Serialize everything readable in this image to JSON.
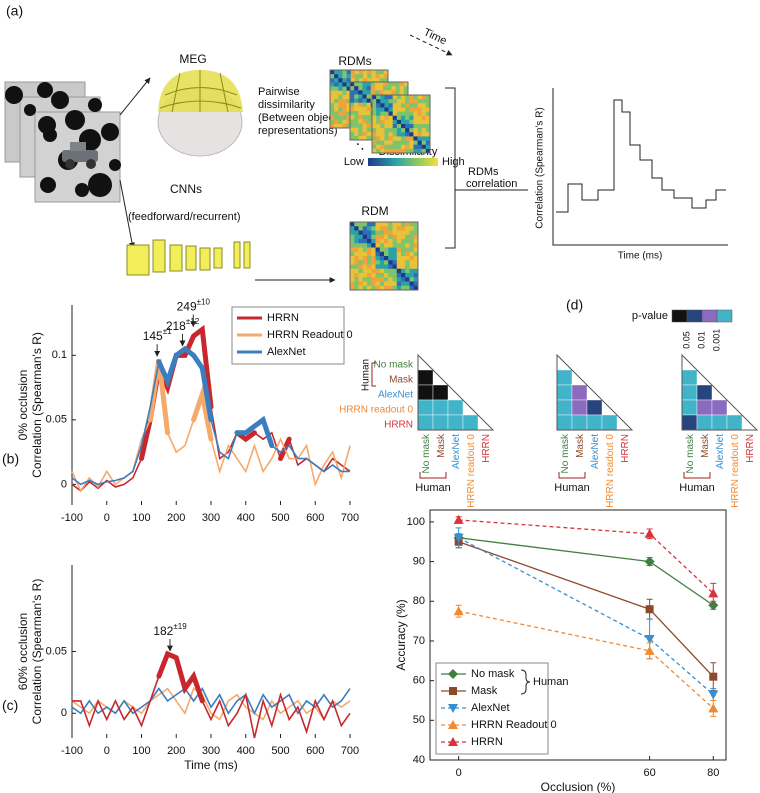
{
  "diagram": {
    "label": "(a)",
    "meg": "MEG",
    "rdms": "RDMs",
    "time": "Time",
    "pairwise": [
      "Pairwise",
      "dissimilarity",
      "(Between object",
      "representations)"
    ],
    "ellipsis": "⋱",
    "dissimilarity": "Dissimilarity",
    "low": "Low",
    "high": "High",
    "rdms_corr": [
      "RDMs",
      "correlation"
    ],
    "cnns": "CNNs",
    "cnn_type": "(feedforward/recurrent)",
    "rdm": "RDM",
    "inset_ylabel": "Correlation (Spearman's R)",
    "inset_xlabel": "Time (ms)"
  },
  "chart_data": [
    {
      "type": "line",
      "panel_label": "(b)",
      "ylabel": [
        "0% occlusion",
        "Correlation (Spearman's R)"
      ],
      "x": [
        -100,
        -75,
        -50,
        -25,
        0,
        25,
        50,
        75,
        100,
        125,
        150,
        175,
        200,
        225,
        250,
        275,
        300,
        325,
        350,
        375,
        400,
        425,
        450,
        475,
        500,
        525,
        550,
        575,
        600,
        625,
        650,
        675,
        700
      ],
      "xlim": [
        -100,
        700
      ],
      "xticks": [
        -100,
        0,
        100,
        200,
        300,
        400,
        500,
        600,
        700
      ],
      "ylim": [
        -0.016,
        0.139
      ],
      "yticks": [
        0,
        0.05,
        0.1
      ],
      "legend": "upper right",
      "series": [
        {
          "name": "HRRN",
          "color": "#c8282d",
          "values": [
            0,
            -0.005,
            0.002,
            -0.003,
            0.003,
            -0.002,
            0,
            0.005,
            0.02,
            0.05,
            0.09,
            0.075,
            0.1,
            0.1,
            0.115,
            0.12,
            0.06,
            0.02,
            0.025,
            0.04,
            0.035,
            0.04,
            0.035,
            0.04,
            0.02,
            0.035,
            0.015,
            0.02,
            0.015,
            0.01,
            0.02,
            0.015,
            0.01
          ],
          "significant": [
            [
              100,
              300
            ],
            [
              375,
              425
            ],
            [
              500,
              525
            ]
          ]
        },
        {
          "name": "HRRN Readout 0",
          "color": "#f5a96b",
          "values": [
            0.01,
            -0.005,
            0.005,
            -0.002,
            0.01,
            0,
            0.005,
            0.01,
            0.035,
            0.05,
            0.097,
            0.04,
            0.025,
            0.03,
            0.05,
            0.07,
            0.035,
            0.01,
            0.03,
            0.02,
            0.01,
            0.03,
            0.01,
            0.02,
            0.035,
            0.02,
            0.02,
            0.03,
            0,
            0.015,
            0.025,
            0.005,
            0.03
          ],
          "significant": [
            [
              125,
              175
            ],
            [
              250,
              300
            ]
          ]
        },
        {
          "name": "AlexNet",
          "color": "#3a7ebf",
          "values": [
            0.005,
            0,
            0.003,
            0,
            0.002,
            0.003,
            0.005,
            0.01,
            0.03,
            0.06,
            0.095,
            0.08,
            0.1,
            0.105,
            0.1,
            0.09,
            0.05,
            0.025,
            0.02,
            0.04,
            0.04,
            0.045,
            0.05,
            0.03,
            0.025,
            0.03,
            0.02,
            0.02,
            0.015,
            0.01,
            0.015,
            0.01,
            0.01
          ],
          "significant": [
            [
              150,
              300
            ],
            [
              375,
              475
            ]
          ]
        }
      ],
      "annotations": [
        {
          "text": "145",
          "sup": "±1",
          "x": 145,
          "y": 0.097
        },
        {
          "text": "218",
          "sup": "±12",
          "x": 218,
          "y": 0.105
        },
        {
          "text": "249",
          "sup": "±10",
          "x": 249,
          "y": 0.12
        }
      ]
    },
    {
      "type": "line",
      "panel_label": "(c)",
      "ylabel": [
        "60% occlusion",
        "Correlation (Spearman's R)"
      ],
      "xlabel": "Time (ms)",
      "x": [
        -100,
        -75,
        -50,
        -25,
        0,
        25,
        50,
        75,
        100,
        125,
        150,
        175,
        200,
        225,
        250,
        275,
        300,
        325,
        350,
        375,
        400,
        425,
        450,
        475,
        500,
        525,
        550,
        575,
        600,
        625,
        650,
        675,
        700
      ],
      "xlim": [
        -100,
        700
      ],
      "xticks": [
        -100,
        0,
        100,
        200,
        300,
        400,
        500,
        600,
        700
      ],
      "ylim": [
        -0.02,
        0.12
      ],
      "yticks": [
        0,
        0.05
      ],
      "series": [
        {
          "color": "#f5a96b",
          "values": [
            0.01,
            0.005,
            0,
            0.01,
            0.005,
            0,
            0.01,
            0.005,
            0,
            0.01,
            0.015,
            0.02,
            0.01,
            0,
            0.02,
            0.015,
            0,
            -0.005,
            0.01,
            0.015,
            0.005,
            0,
            -0.005,
            0.01,
            0,
            0.005,
            0.01,
            0,
            0.005,
            -0.005,
            0.01,
            0.005,
            0.01
          ]
        },
        {
          "color": "#3a7ebf",
          "values": [
            0.005,
            0,
            0.01,
            0,
            0.005,
            0,
            0.01,
            0,
            0.005,
            0.01,
            0.02,
            0.01,
            0.015,
            0.02,
            0.01,
            0.02,
            0.005,
            0.015,
            0,
            0.01,
            0.015,
            0,
            0.015,
            0.005,
            0.01,
            0.015,
            0,
            0.01,
            0.005,
            0.015,
            0.005,
            0.01,
            0.02
          ]
        },
        {
          "color": "#c8282d",
          "values": [
            0.01,
            0.01,
            -0.01,
            0.01,
            -0.005,
            0.01,
            -0.005,
            0.005,
            -0.01,
            0.01,
            0.03,
            0.048,
            0.045,
            0.02,
            0.03,
            0.01,
            -0.005,
            0.01,
            -0.01,
            0,
            0.015,
            -0.02,
            0.01,
            -0.01,
            0.015,
            -0.005,
            0.005,
            -0.015,
            0.01,
            -0.005,
            0.01,
            -0.01,
            0
          ],
          "significant": [
            [
              150,
              275
            ]
          ]
        }
      ],
      "annotations": [
        {
          "text": "182",
          "sup": "±19",
          "x": 182,
          "y": 0.048
        }
      ]
    },
    {
      "type": "line",
      "ylabel": "Accuracy (%)",
      "xlabel": "Occlusion (%)",
      "x": [
        0,
        60,
        80
      ],
      "xlim": [
        -9,
        84
      ],
      "xticks": [
        0,
        60,
        80
      ],
      "ylim": [
        40,
        103
      ],
      "yticks": [
        40,
        50,
        60,
        70,
        80,
        90,
        100
      ],
      "legend": "lower left",
      "legend_group_label": "Human",
      "series": [
        {
          "name": "No mask",
          "color": "#3f7f3f",
          "marker": "diamond",
          "dashed": false,
          "values": [
            96,
            90,
            79
          ],
          "errors": [
            1,
            1,
            1
          ]
        },
        {
          "name": "Mask",
          "color": "#8b4a2b",
          "marker": "square",
          "dashed": false,
          "values": [
            95,
            78,
            61
          ],
          "errors": [
            1.5,
            2.5,
            3.5
          ]
        },
        {
          "name": "AlexNet",
          "color": "#3a8fd0",
          "marker": "triangle-down",
          "dashed": true,
          "values": [
            96,
            70.5,
            56.5
          ],
          "errors": [
            2.5,
            5,
            1.5
          ]
        },
        {
          "name": "HRRN Readout 0",
          "color": "#f08a30",
          "marker": "triangle-up",
          "dashed": true,
          "values": [
            77.5,
            67.5,
            53
          ],
          "errors": [
            1.5,
            2,
            2
          ]
        },
        {
          "name": "HRRN",
          "color": "#d8323c",
          "marker": "triangle-up",
          "dashed": true,
          "values": [
            100.5,
            97,
            82
          ],
          "errors": [
            0.8,
            1.2,
            2.5
          ]
        }
      ]
    }
  ],
  "pvalue_panel": {
    "label": "(d)",
    "title": "p-value",
    "colors": [
      "#111111",
      "#26457e",
      "#8a6bbf",
      "#42b4c9"
    ],
    "ticks": [
      0.05,
      0.01,
      0.001
    ],
    "labels": [
      "No mask",
      "Mask",
      "AlexNet",
      "HRRN readout 0",
      "HRRN"
    ],
    "label_colors": [
      "#3f7f3f",
      "#8b4a2b",
      "#3a8fd0",
      "#f08a30",
      "#d8323c"
    ],
    "group_label": "Human",
    "matrices": [
      {
        "rows": [
          [
            0
          ],
          [
            0,
            0
          ],
          [
            3,
            3,
            3
          ],
          [
            3,
            3,
            3,
            3
          ]
        ]
      },
      {
        "rows": [
          [
            3
          ],
          [
            3,
            2
          ],
          [
            3,
            2,
            1
          ],
          [
            3,
            3,
            3,
            3
          ]
        ]
      },
      {
        "rows": [
          [
            3
          ],
          [
            3,
            1
          ],
          [
            3,
            2,
            2
          ],
          [
            1,
            3,
            3,
            3
          ]
        ]
      }
    ]
  }
}
